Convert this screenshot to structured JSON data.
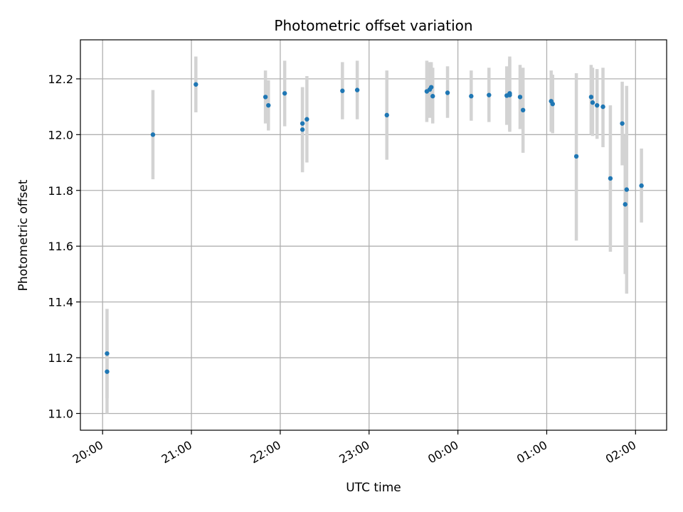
{
  "chart_data": {
    "type": "scatter",
    "title": "Photometric offset variation",
    "xlabel": "UTC time",
    "ylabel": "Photometric offset",
    "x_unit": "UTC",
    "x_ticks": [
      "20:00",
      "21:00",
      "22:00",
      "23:00",
      "00:00",
      "01:00",
      "02:00"
    ],
    "y_ticks": [
      "11.0",
      "11.2",
      "11.4",
      "11.6",
      "11.8",
      "12.0",
      "12.2"
    ],
    "xlim": [
      "19:45",
      "02:21"
    ],
    "ylim": [
      10.94,
      12.34
    ],
    "grid": true,
    "marker_color": "#1f77b4",
    "errorbar_color": "#d3d3d3",
    "points": [
      {
        "x": "20:03",
        "y": 11.15,
        "lo": 11.0,
        "hi": 11.3
      },
      {
        "x": "20:03",
        "y": 11.215,
        "lo": 11.055,
        "hi": 11.375
      },
      {
        "x": "20:34",
        "y": 12.0,
        "lo": 11.84,
        "hi": 12.16
      },
      {
        "x": "21:03",
        "y": 12.18,
        "lo": 12.08,
        "hi": 12.28
      },
      {
        "x": "21:50",
        "y": 12.135,
        "lo": 12.04,
        "hi": 12.23
      },
      {
        "x": "21:52",
        "y": 12.105,
        "lo": 12.015,
        "hi": 12.195
      },
      {
        "x": "22:03",
        "y": 12.148,
        "lo": 12.03,
        "hi": 12.265
      },
      {
        "x": "22:15",
        "y": 12.04,
        "lo": 11.91,
        "hi": 12.17
      },
      {
        "x": "22:15",
        "y": 12.018,
        "lo": 11.865,
        "hi": 12.17
      },
      {
        "x": "22:18",
        "y": 12.055,
        "lo": 11.9,
        "hi": 12.21
      },
      {
        "x": "22:42",
        "y": 12.157,
        "lo": 12.055,
        "hi": 12.26
      },
      {
        "x": "22:52",
        "y": 12.16,
        "lo": 12.055,
        "hi": 12.265
      },
      {
        "x": "23:12",
        "y": 12.07,
        "lo": 11.91,
        "hi": 12.23
      },
      {
        "x": "23:39",
        "y": 12.155,
        "lo": 12.045,
        "hi": 12.265
      },
      {
        "x": "23:41",
        "y": 12.162,
        "lo": 12.06,
        "hi": 12.26
      },
      {
        "x": "23:42",
        "y": 12.17,
        "lo": 12.08,
        "hi": 12.26
      },
      {
        "x": "23:43",
        "y": 12.138,
        "lo": 12.04,
        "hi": 12.24
      },
      {
        "x": "23:53",
        "y": 12.15,
        "lo": 12.06,
        "hi": 12.245
      },
      {
        "x": "00:09",
        "y": 12.138,
        "lo": 12.05,
        "hi": 12.23
      },
      {
        "x": "00:21",
        "y": 12.142,
        "lo": 12.045,
        "hi": 12.24
      },
      {
        "x": "00:33",
        "y": 12.14,
        "lo": 12.035,
        "hi": 12.245
      },
      {
        "x": "00:35",
        "y": 12.148,
        "lo": 12.015,
        "hi": 12.28
      },
      {
        "x": "00:35",
        "y": 12.142,
        "lo": 12.01,
        "hi": 12.27
      },
      {
        "x": "00:42",
        "y": 12.135,
        "lo": 12.02,
        "hi": 12.25
      },
      {
        "x": "00:44",
        "y": 12.088,
        "lo": 11.935,
        "hi": 12.24
      },
      {
        "x": "01:03",
        "y": 12.12,
        "lo": 12.01,
        "hi": 12.23
      },
      {
        "x": "01:04",
        "y": 12.11,
        "lo": 12.005,
        "hi": 12.215
      },
      {
        "x": "01:20",
        "y": 11.922,
        "lo": 11.62,
        "hi": 12.22
      },
      {
        "x": "01:30",
        "y": 12.135,
        "lo": 12.0,
        "hi": 12.25
      },
      {
        "x": "01:31",
        "y": 12.115,
        "lo": 11.995,
        "hi": 12.24
      },
      {
        "x": "01:34",
        "y": 12.105,
        "lo": 11.985,
        "hi": 12.235
      },
      {
        "x": "01:38",
        "y": 12.1,
        "lo": 11.955,
        "hi": 12.24
      },
      {
        "x": "01:43",
        "y": 11.843,
        "lo": 11.58,
        "hi": 12.105
      },
      {
        "x": "01:51",
        "y": 12.04,
        "lo": 11.89,
        "hi": 12.19
      },
      {
        "x": "01:53",
        "y": 11.75,
        "lo": 11.5,
        "hi": 12.0
      },
      {
        "x": "01:54",
        "y": 11.803,
        "lo": 11.43,
        "hi": 12.175
      },
      {
        "x": "02:04",
        "y": 11.817,
        "lo": 11.685,
        "hi": 11.95
      }
    ]
  }
}
